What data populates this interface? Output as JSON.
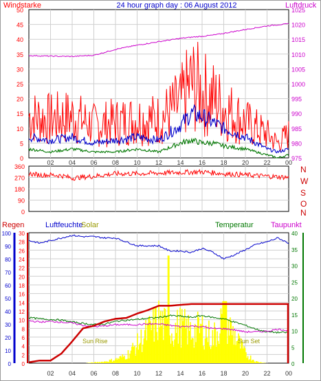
{
  "colors": {
    "red": "#ff0000",
    "magenta": "#cc00cc",
    "blue": "#0000cc",
    "green": "#007700",
    "yellow": "#ffff00",
    "yellow_text": "#999900",
    "darkred": "#cc0000",
    "grid": "#cfcfcf",
    "axis": "#000000"
  },
  "header": {
    "title": "24 hour graph day : 06 August 2012",
    "left_label": "Windstarke",
    "right_label": "Luftdruck"
  },
  "time_axis": [
    "02",
    "04",
    "06",
    "08",
    "10",
    "12",
    "14",
    "16",
    "18",
    "20",
    "22",
    "00"
  ],
  "wind_panel": {
    "y_ticks": [
      "50",
      "45",
      "40",
      "35",
      "30",
      "25",
      "20",
      "15",
      "10",
      "5",
      "0"
    ],
    "pressure_ticks": [
      "1025",
      "1020",
      "1015",
      "1010",
      "1005",
      "1000",
      "995",
      "990",
      "985",
      "980",
      "975"
    ]
  },
  "dir_panel": {
    "y_ticks": [
      "360",
      "270",
      "180",
      "90",
      "0"
    ],
    "compass": [
      "N",
      "W",
      "S",
      "O",
      "N"
    ]
  },
  "bottom_panel": {
    "labels": {
      "regen": "Regen",
      "luftfeuchte": "Luftfeuchte",
      "solar": "Solar",
      "temperatur": "Temperatur",
      "taupunkt": "Taupunkt",
      "sun_rise": "Sun Rise",
      "sun_set": "Sun Set"
    },
    "humidity_ticks": [
      "100",
      "90",
      "80",
      "70",
      "60",
      "50",
      "40",
      "30",
      "20",
      "10",
      "0"
    ],
    "rain_ticks": [
      "30",
      "28",
      "26",
      "24",
      "22",
      "20",
      "18",
      "16",
      "14",
      "12",
      "10",
      "8",
      "6",
      "4",
      "2",
      "0"
    ],
    "temp_ticks": [
      "40",
      "35",
      "30",
      "25",
      "20",
      "15",
      "10",
      "5",
      "0"
    ]
  },
  "chart_data": [
    {
      "type": "line",
      "title": "24 hour graph day : 06 August 2012",
      "xlabel": "",
      "x": [
        0,
        2,
        4,
        6,
        8,
        10,
        12,
        14,
        15,
        16,
        17,
        18,
        20,
        22,
        23,
        24
      ],
      "ylim": [
        0,
        50
      ],
      "y2lim": [
        975,
        1025
      ],
      "series": [
        {
          "name": "Windstarke",
          "axis": "left",
          "color": "red",
          "values": [
            14,
            13,
            14,
            11,
            12,
            13,
            13,
            18,
            25,
            22,
            20,
            17,
            12,
            8,
            5,
            8
          ]
        },
        {
          "name": "Windstarke",
          "axis": "left",
          "color": "blue",
          "values": [
            7,
            6,
            7,
            5,
            6,
            7,
            6,
            11,
            15,
            14,
            12,
            10,
            7,
            3,
            2,
            3
          ]
        },
        {
          "name": "Windstarke",
          "axis": "left",
          "color": "green",
          "values": [
            3,
            2,
            3,
            2,
            2,
            3,
            2,
            5,
            6,
            5,
            5,
            4,
            3,
            1,
            0,
            1
          ]
        },
        {
          "name": "Luftdruck",
          "axis": "right",
          "color": "magenta",
          "values": [
            1009.5,
            1009.3,
            1009.2,
            1009.6,
            1011.6,
            1013.0,
            1014.2,
            1015.3,
            1015.7,
            1016.0,
            1016.4,
            1017.0,
            1018.3,
            1019.5,
            1019.9,
            1020.2
          ]
        }
      ]
    },
    {
      "type": "line",
      "title": "",
      "x": [
        0,
        1,
        2,
        3,
        4,
        6,
        8,
        10,
        12,
        14,
        16,
        18,
        20,
        22,
        23,
        24
      ],
      "ylim": [
        0,
        360
      ],
      "series": [
        {
          "name": "",
          "color": "red",
          "values": [
            300,
            290,
            290,
            285,
            265,
            280,
            300,
            300,
            305,
            310,
            315,
            300,
            290,
            280,
            275,
            270
          ]
        }
      ]
    },
    {
      "type": "line",
      "title": "",
      "x": [
        0,
        1,
        2,
        3,
        4,
        5,
        6,
        7,
        8,
        9,
        10,
        11,
        12,
        13,
        14,
        15,
        16,
        17,
        18,
        19,
        20,
        21,
        22,
        23,
        24
      ],
      "series": [
        {
          "name": "Luftfeuchte",
          "axis": "humidity",
          "ylim": [
            0,
            100
          ],
          "color": "blue",
          "values": [
            94,
            92,
            94,
            96,
            98,
            97,
            97,
            96,
            96,
            93,
            90,
            90,
            90,
            86,
            86,
            85,
            88,
            85,
            80,
            83,
            87,
            91,
            93,
            96,
            92
          ]
        },
        {
          "name": "Regen",
          "axis": "rain",
          "ylim": [
            0,
            30
          ],
          "color": "darkred",
          "values": [
            0.2,
            0.6,
            0.6,
            2.2,
            5.0,
            8.0,
            8.6,
            9.6,
            10.2,
            10.4,
            11.4,
            12.2,
            13.2,
            13.2,
            13.4,
            13.6,
            13.6,
            13.6,
            13.6,
            13.6,
            13.6,
            13.6,
            13.6,
            13.6,
            13.6
          ]
        },
        {
          "name": "Solar",
          "axis": "temp",
          "ylim": [
            0,
            40
          ],
          "color": "yellow",
          "values": [
            0,
            0,
            0,
            0,
            0,
            0,
            0.2,
            0.5,
            1.2,
            2.4,
            6,
            10,
            14,
            10,
            12,
            10,
            11,
            8,
            15,
            9,
            3,
            0.5,
            0,
            0,
            0
          ]
        },
        {
          "name": "Temperatur",
          "axis": "temp",
          "ylim": [
            0,
            40
          ],
          "color": "green",
          "values": [
            14,
            13.6,
            13.4,
            13.2,
            12.6,
            12.2,
            11.8,
            12.0,
            12.8,
            13.2,
            13.4,
            13.8,
            14.0,
            14.6,
            14.4,
            14.0,
            14.6,
            14.0,
            13.6,
            12.6,
            11.6,
            10.4,
            9.6,
            9.4,
            9.4
          ]
        },
        {
          "name": "Taupunkt",
          "axis": "temp",
          "ylim": [
            0,
            40
          ],
          "color": "magenta",
          "values": [
            13.0,
            12.6,
            12.8,
            12.6,
            12.3,
            11.6,
            11.2,
            11.4,
            11.8,
            11.8,
            11.8,
            12.0,
            12.0,
            11.6,
            11.2,
            11.4,
            11.2,
            10.6,
            10.6,
            10.2,
            9.6,
            9.6,
            9.8,
            10.4,
            10.0
          ]
        }
      ]
    }
  ]
}
